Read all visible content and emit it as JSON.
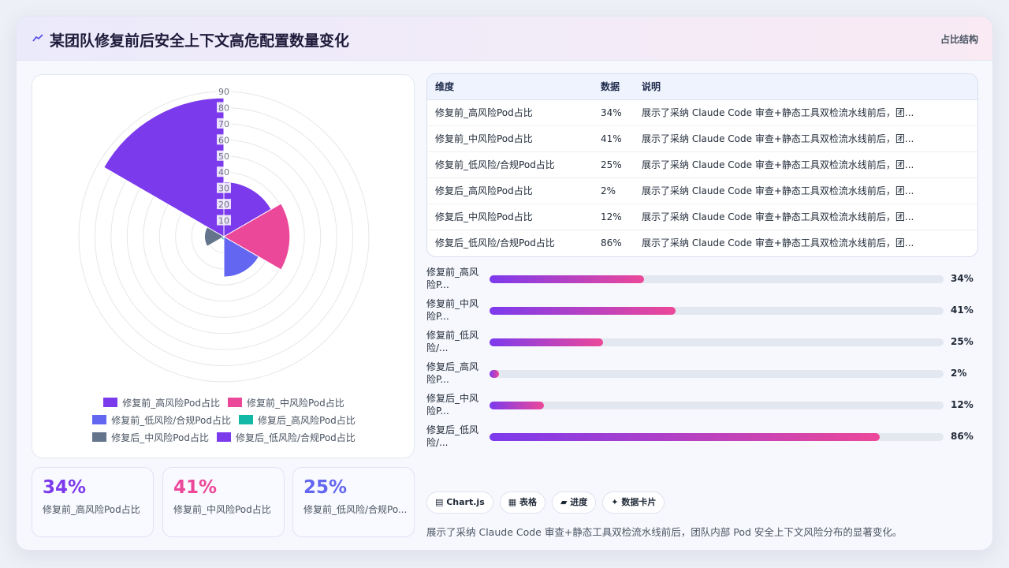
{
  "header": {
    "title": "某团队修复前后安全上下文高危配置数量变化",
    "tag": "占比结构"
  },
  "colors": {
    "purple": "#7c3aed",
    "pink": "#ec4899",
    "indigo": "#6366f1",
    "teal": "#14b8a6",
    "slate": "#64748b"
  },
  "chart_data": {
    "type": "polarArea",
    "categories": [
      "修复前_高风险Pod占比",
      "修复前_中风险Pod占比",
      "修复前_低风险/合规Pod占比",
      "修复后_高风险Pod占比",
      "修复后_中风险Pod占比",
      "修复后_低风险/合规Pod占比"
    ],
    "values": [
      34,
      41,
      25,
      2,
      12,
      86
    ],
    "colors": [
      "#7c3aed",
      "#ec4899",
      "#6366f1",
      "#14b8a6",
      "#64748b",
      "#7c3aed"
    ],
    "r_range": [
      0,
      90
    ],
    "r_ticks": [
      10,
      20,
      30,
      40,
      50,
      60,
      70,
      80,
      90
    ],
    "legend_position": "bottom",
    "grid": true
  },
  "kpis": [
    {
      "value": "34%",
      "label": "修复前_高风险Pod占比",
      "color": "#7c3aed"
    },
    {
      "value": "41%",
      "label": "修复前_中风险Pod占比",
      "color": "#ec4899"
    },
    {
      "value": "25%",
      "label": "修复前_低风险/合规Po...",
      "color": "#6366f1"
    }
  ],
  "table": {
    "headers": [
      "维度",
      "数据",
      "说明"
    ],
    "rows": [
      [
        "修复前_高风险Pod占比",
        "34%",
        "展示了采纳 Claude Code 审查+静态工具双检流水线前后，团..."
      ],
      [
        "修复前_中风险Pod占比",
        "41%",
        "展示了采纳 Claude Code 审查+静态工具双检流水线前后，团..."
      ],
      [
        "修复前_低风险/合规Pod占比",
        "25%",
        "展示了采纳 Claude Code 审查+静态工具双检流水线前后，团..."
      ],
      [
        "修复后_高风险Pod占比",
        "2%",
        "展示了采纳 Claude Code 审查+静态工具双检流水线前后，团..."
      ],
      [
        "修复后_中风险Pod占比",
        "12%",
        "展示了采纳 Claude Code 审查+静态工具双检流水线前后，团..."
      ],
      [
        "修复后_低风险/合规Pod占比",
        "86%",
        "展示了采纳 Claude Code 审查+静态工具双检流水线前后，团..."
      ]
    ]
  },
  "bars": [
    {
      "label": "修复前_高风险P...",
      "value": 34,
      "text": "34%"
    },
    {
      "label": "修复前_中风险P...",
      "value": 41,
      "text": "41%"
    },
    {
      "label": "修复前_低风险/...",
      "value": 25,
      "text": "25%"
    },
    {
      "label": "修复后_高风险P...",
      "value": 2,
      "text": "2%"
    },
    {
      "label": "修复后_中风险P...",
      "value": 12,
      "text": "12%"
    },
    {
      "label": "修复后_低风险/...",
      "value": 86,
      "text": "86%"
    }
  ],
  "chips": [
    "Chart.js",
    "表格",
    "进度",
    "数据卡片"
  ],
  "chip_icons": [
    "chart-icon",
    "table-icon",
    "folder-icon",
    "sparkle-icon"
  ],
  "footer_note": "展示了采纳 Claude Code 审查+静态工具双检流水线前后，团队内部 Pod 安全上下文风险分布的显著变化。"
}
